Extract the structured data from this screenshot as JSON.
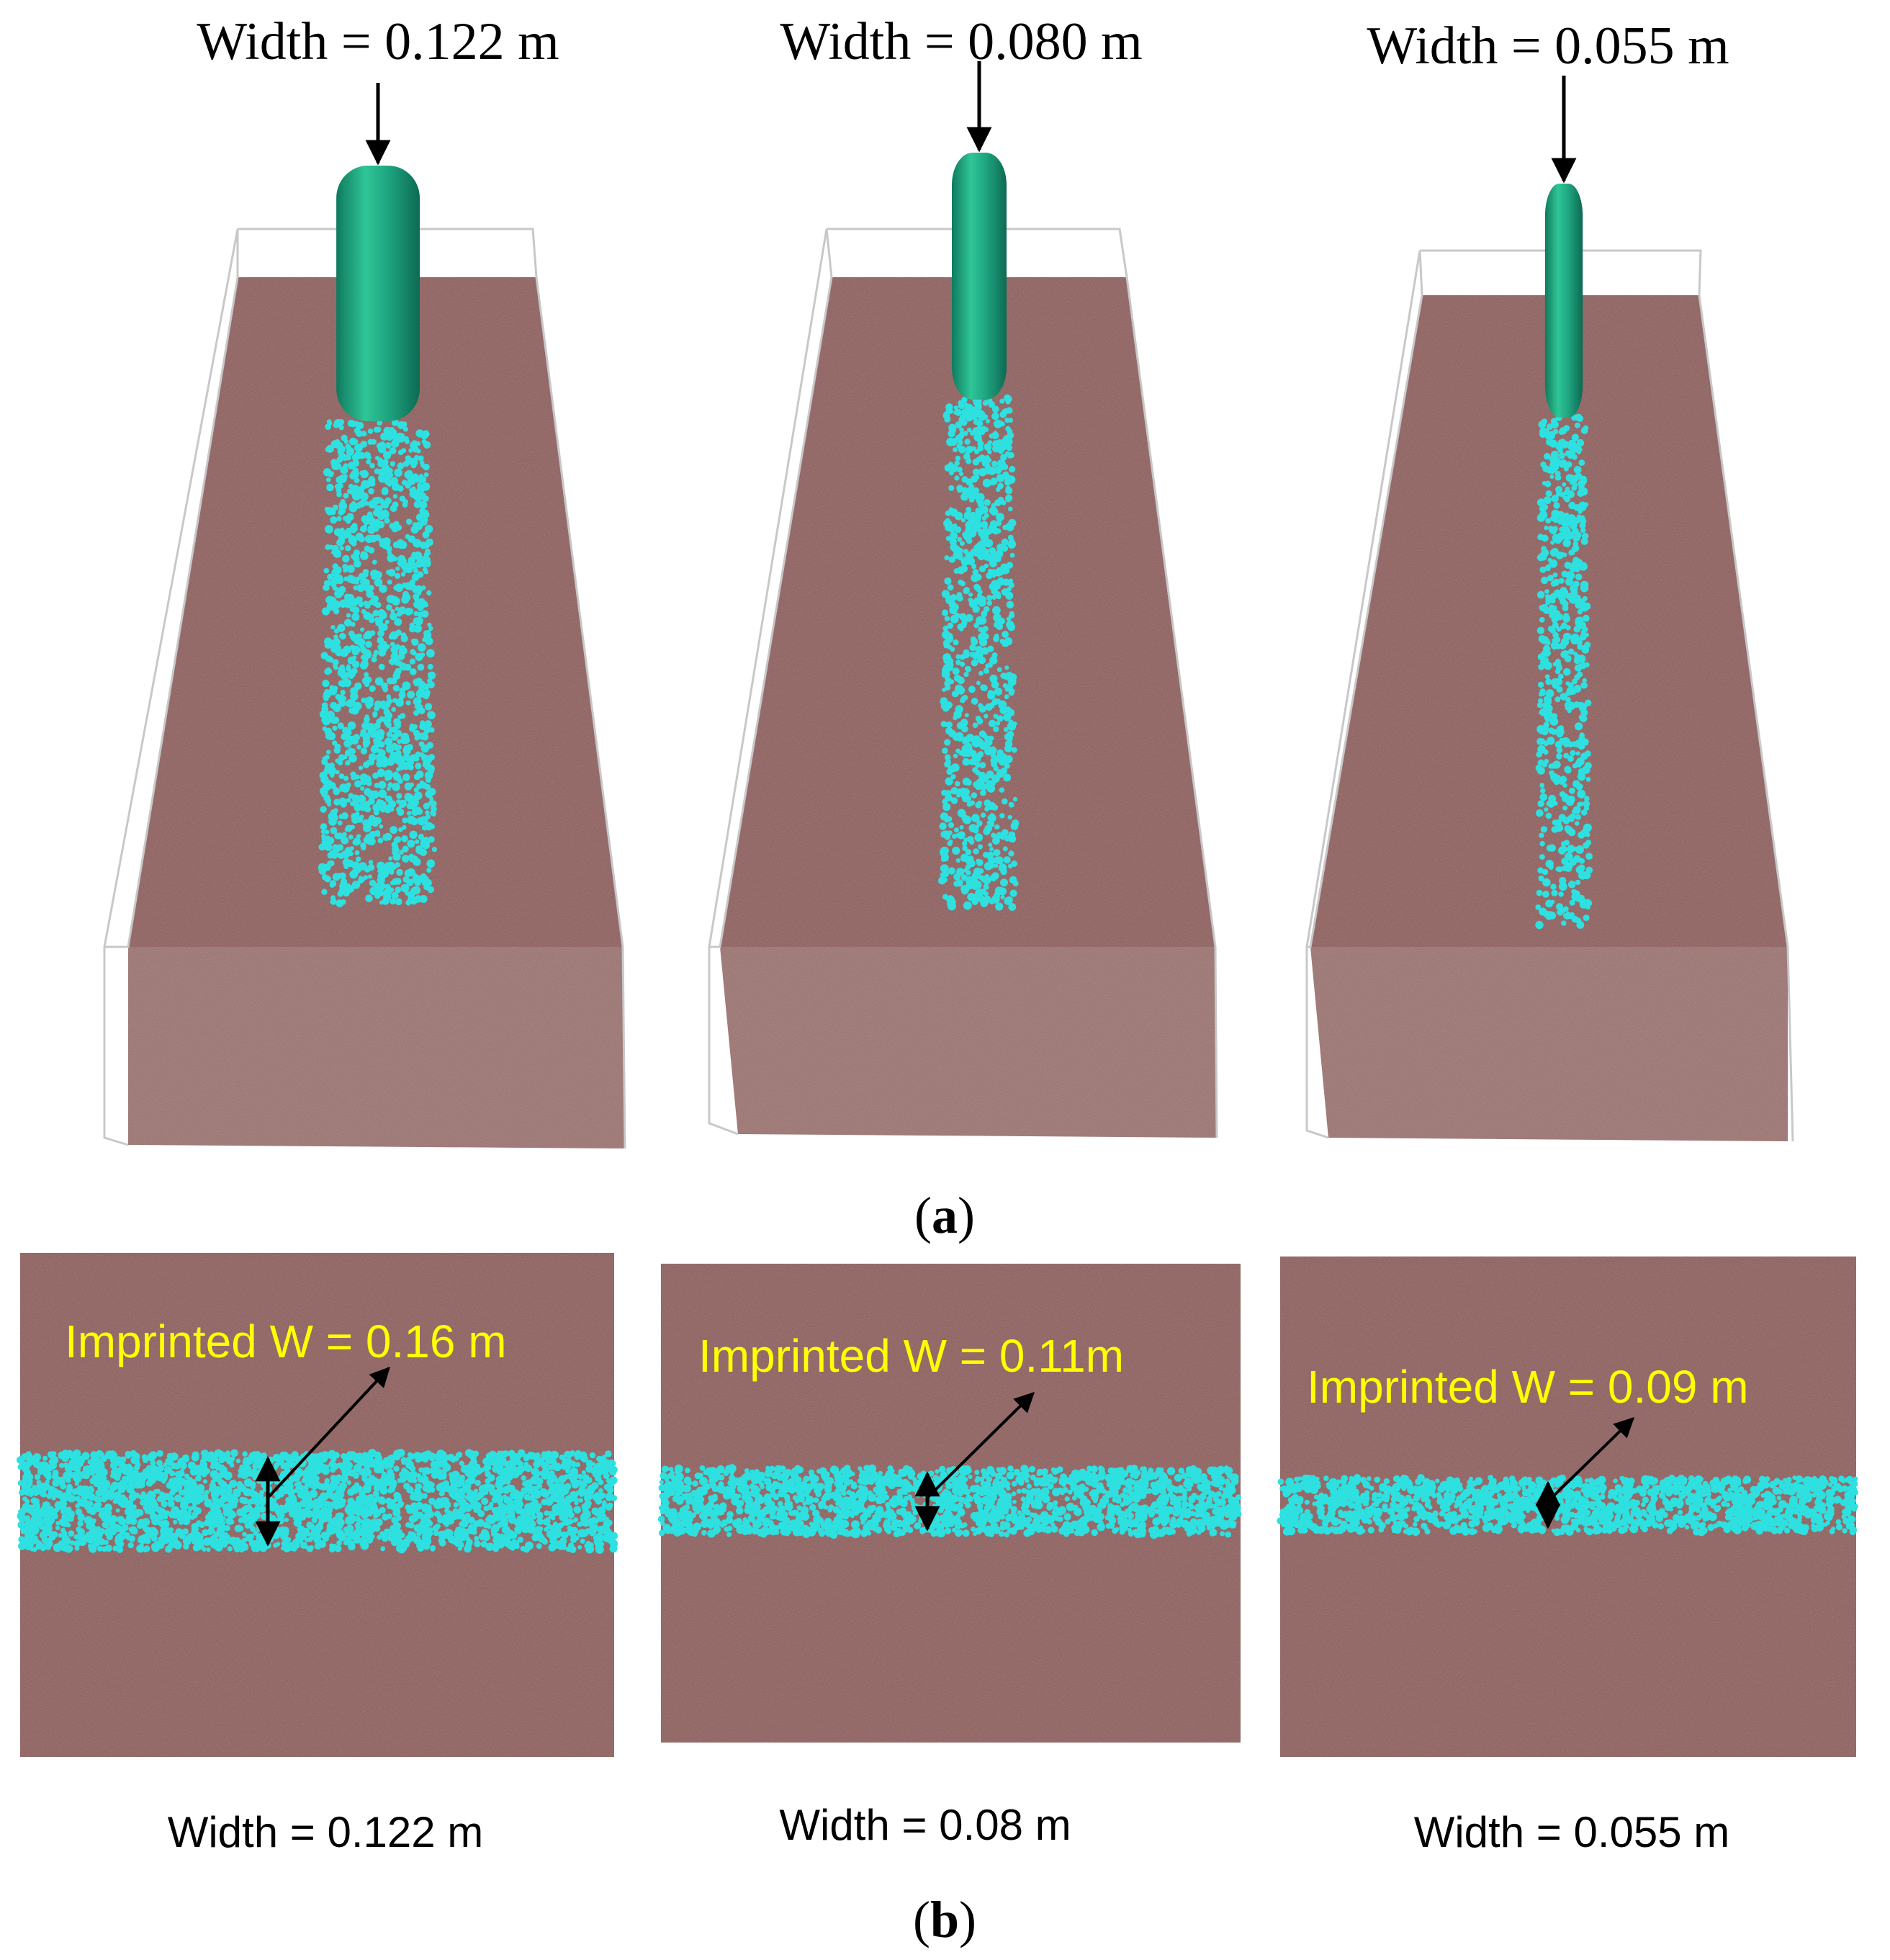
{
  "part_a": {
    "label_open": "(",
    "label_letter": "a",
    "label_close": ")",
    "panels": [
      {
        "width_label": "Width = 0.122 m",
        "wheel_width_m": 0.122
      },
      {
        "width_label": "Width = 0.080 m",
        "wheel_width_m": 0.08
      },
      {
        "width_label": "Width = 0.055 m",
        "wheel_width_m": 0.055
      }
    ]
  },
  "part_b": {
    "label_open": "(",
    "label_letter": "b",
    "label_close": ")",
    "panels": [
      {
        "imprint_label": "Imprinted W = 0.16 m",
        "width_label": "Width = 0.122 m",
        "imprinted_width_m": 0.16
      },
      {
        "imprint_label": "Imprinted W = 0.11m",
        "width_label": "Width = 0.08 m",
        "imprinted_width_m": 0.11
      },
      {
        "imprint_label": "Imprinted W = 0.09 m",
        "width_label": "Width = 0.055 m",
        "imprinted_width_m": 0.09
      }
    ]
  },
  "colors": {
    "soil": "#8c5a58",
    "soil_front": "#9a6f6c",
    "wheel": "#1fa882",
    "wheel_highlight": "#5fe0b8",
    "track": "#2ee0e0",
    "imprint_text": "#ffff00",
    "box_edge": "#c8c8c8"
  }
}
